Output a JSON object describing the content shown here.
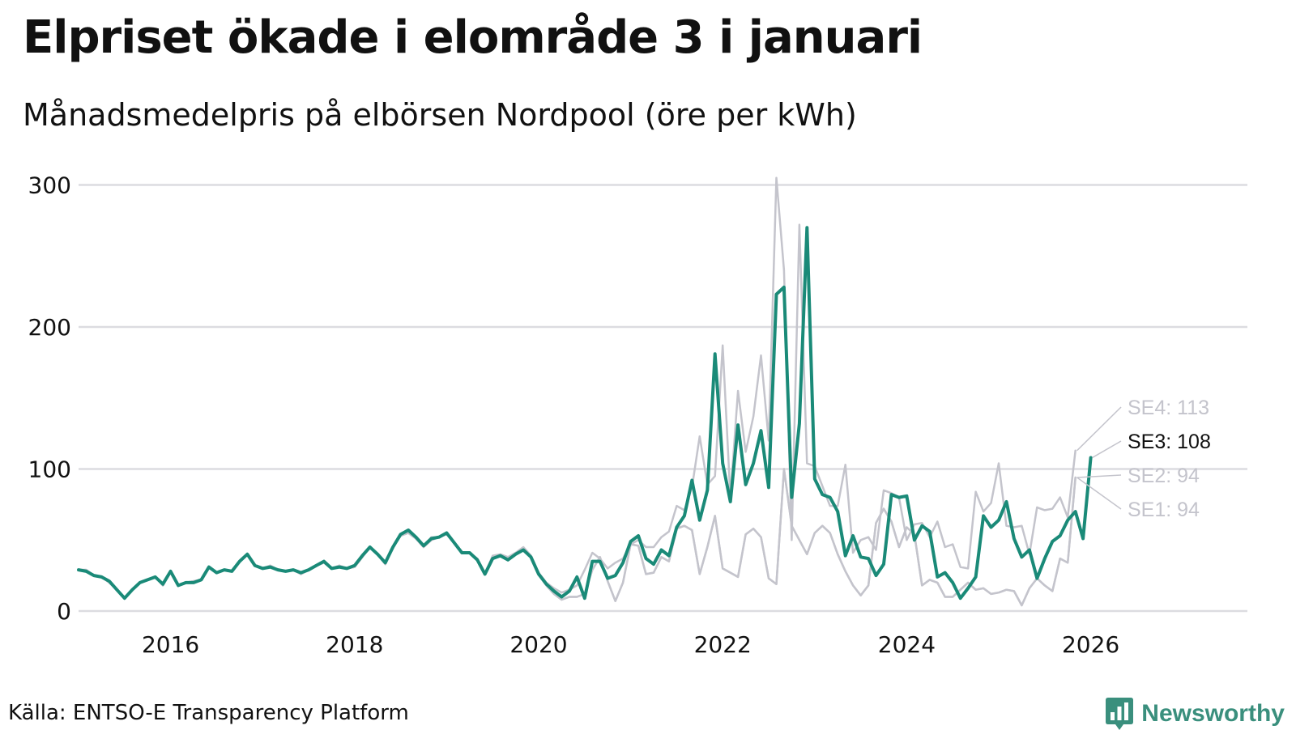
{
  "title": "Elpriset ökade i elområde 3 i januari",
  "subtitle": "Månadsmedelpris på elbörsen Nordpool (öre per kWh)",
  "source": "Källa: ENTSO-E Transparency Platform",
  "brand": {
    "name": "Newsworthy",
    "color": "#3a8f7d",
    "icon": "bar-chart-logo-icon"
  },
  "chart_data": {
    "type": "line",
    "title": "Elpriset ökade i elområde 3 i januari",
    "subtitle": "Månadsmedelpris på elbörsen Nordpool (öre per kWh)",
    "xlabel": "",
    "ylabel": "",
    "x_start": 2015.0,
    "x_step": 0.0833333,
    "xlim": [
      2015.0,
      2027.75
    ],
    "ylim": [
      0,
      310
    ],
    "yticks": [
      0,
      100,
      200,
      300
    ],
    "ytick_labels": [
      "0",
      "100",
      "200",
      "300"
    ],
    "xticks": [
      2016,
      2018,
      2020,
      2022,
      2024,
      2026
    ],
    "xtick_labels": [
      "2016",
      "2018",
      "2020",
      "2022",
      "2024",
      "2026"
    ],
    "grid": true,
    "legend": "direct labels at line ends (right)",
    "series": [
      {
        "name": "SE1",
        "label": "SE1: 94",
        "color": "#c4c4cc",
        "highlight": false,
        "values": [
          29,
          29,
          25,
          24,
          20,
          15,
          9,
          15,
          20,
          22,
          24,
          18,
          28,
          18,
          20,
          21,
          22,
          31,
          27,
          29,
          28,
          35,
          40,
          32,
          30,
          32,
          29,
          28,
          29,
          26,
          29,
          32,
          34,
          30,
          32,
          30,
          31,
          38,
          45,
          40,
          33,
          45,
          53,
          55,
          51,
          45,
          50,
          52,
          54,
          48,
          41,
          41,
          36,
          26,
          37,
          39,
          36,
          40,
          44,
          38,
          26,
          18,
          12,
          8,
          10,
          10,
          12,
          29,
          38,
          21,
          7,
          20,
          47,
          46,
          26,
          27,
          38,
          35,
          58,
          60,
          57,
          26,
          45,
          67,
          30,
          27,
          24,
          54,
          58,
          52,
          23,
          19,
          100,
          60,
          50,
          40,
          55,
          60,
          55,
          40,
          28,
          18,
          11,
          18,
          62,
          72,
          63,
          45,
          59,
          54,
          18,
          22,
          20,
          10,
          10,
          15,
          20,
          15,
          16,
          12,
          13,
          15,
          14,
          4,
          16,
          23,
          18,
          14,
          37,
          34,
          94
        ]
      },
      {
        "name": "SE2",
        "label": "SE2: 94",
        "color": "#c4c4cc",
        "highlight": false,
        "values": [
          29,
          29,
          25,
          24,
          20,
          15,
          9,
          15,
          20,
          22,
          24,
          18,
          28,
          18,
          20,
          21,
          22,
          31,
          27,
          29,
          28,
          35,
          40,
          32,
          30,
          32,
          29,
          28,
          29,
          26,
          29,
          32,
          34,
          30,
          32,
          30,
          31,
          38,
          45,
          40,
          33,
          45,
          53,
          55,
          51,
          45,
          50,
          52,
          54,
          48,
          41,
          41,
          36,
          26,
          37,
          39,
          36,
          40,
          44,
          38,
          26,
          18,
          12,
          8,
          10,
          10,
          12,
          29,
          38,
          21,
          7,
          20,
          47,
          46,
          26,
          27,
          38,
          35,
          58,
          60,
          57,
          26,
          45,
          67,
          30,
          27,
          24,
          54,
          58,
          52,
          23,
          19,
          100,
          60,
          50,
          40,
          55,
          60,
          55,
          40,
          28,
          18,
          11,
          18,
          62,
          72,
          63,
          45,
          59,
          54,
          18,
          22,
          20,
          10,
          10,
          15,
          20,
          15,
          16,
          12,
          13,
          15,
          14,
          4,
          16,
          23,
          18,
          14,
          37,
          34,
          94
        ]
      },
      {
        "name": "SE4",
        "label": "SE4: 113",
        "color": "#c4c4cc",
        "highlight": false,
        "values": [
          29,
          29,
          25,
          24,
          20,
          15,
          9,
          15,
          20,
          22,
          24,
          18,
          28,
          18,
          20,
          21,
          22,
          31,
          27,
          29,
          28,
          35,
          40,
          32,
          30,
          32,
          29,
          28,
          29,
          26,
          29,
          32,
          34,
          30,
          32,
          30,
          31,
          38,
          45,
          40,
          33,
          45,
          53,
          55,
          51,
          45,
          52,
          52,
          55,
          48,
          41,
          41,
          37,
          26,
          39,
          40,
          38,
          41,
          45,
          39,
          27,
          20,
          16,
          13,
          15,
          18,
          29,
          41,
          37,
          30,
          34,
          37,
          47,
          50,
          45,
          45,
          52,
          56,
          74,
          71,
          87,
          123,
          89,
          95,
          187,
          80,
          155,
          112,
          137,
          180,
          120,
          305,
          240,
          50,
          272,
          104,
          102,
          88,
          74,
          74,
          103,
          41,
          50,
          52,
          43,
          85,
          83,
          80,
          50,
          61,
          62,
          52,
          63,
          45,
          47,
          31,
          30,
          84,
          70,
          76,
          104,
          60,
          59,
          60,
          40,
          73,
          71,
          72,
          80,
          66,
          113
        ]
      },
      {
        "name": "SE3",
        "label": "SE3: 108",
        "color": "#1a8a78",
        "highlight": true,
        "values": [
          29,
          28,
          25,
          24,
          21,
          15,
          9,
          15,
          20,
          22,
          24,
          19,
          28,
          18,
          20,
          20,
          22,
          31,
          27,
          29,
          28,
          35,
          40,
          32,
          30,
          31,
          29,
          28,
          29,
          27,
          29,
          32,
          35,
          30,
          31,
          30,
          32,
          39,
          45,
          40,
          34,
          45,
          54,
          57,
          52,
          46,
          51,
          52,
          55,
          48,
          41,
          41,
          36,
          26,
          37,
          39,
          36,
          40,
          43,
          38,
          26,
          19,
          14,
          10,
          14,
          24,
          9,
          35,
          35,
          23,
          25,
          34,
          49,
          53,
          37,
          33,
          43,
          39,
          59,
          67,
          92,
          64,
          85,
          181,
          104,
          77,
          131,
          89,
          104,
          127,
          87,
          223,
          228,
          80,
          132,
          270,
          93,
          82,
          80,
          70,
          39,
          53,
          38,
          37,
          25,
          33,
          82,
          80,
          81,
          50,
          60,
          56,
          24,
          27,
          20,
          9,
          16,
          24,
          67,
          59,
          64,
          77,
          51,
          38,
          43,
          23,
          37,
          49,
          53,
          64,
          70,
          51,
          108
        ]
      }
    ]
  }
}
